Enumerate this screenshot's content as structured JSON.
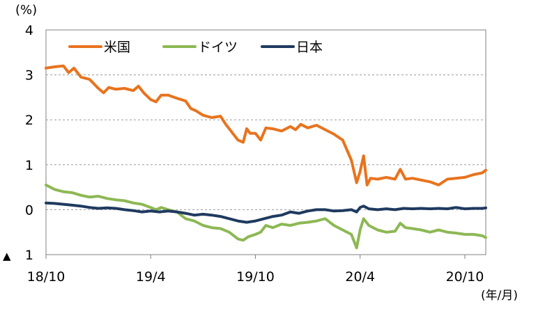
{
  "chart_data": {
    "type": "line",
    "ylabel": "(%)",
    "xlabel": "(年/月)",
    "ylim": [
      -1,
      4
    ],
    "yticks": [
      {
        "value": 4,
        "label": "4"
      },
      {
        "value": 3,
        "label": "3"
      },
      {
        "value": 2,
        "label": "2"
      },
      {
        "value": 1,
        "label": "1"
      },
      {
        "value": 0,
        "label": "0"
      },
      {
        "value": -1,
        "label": "1",
        "marker": "▲"
      }
    ],
    "xticks": [
      {
        "index": 0,
        "label": "18/10"
      },
      {
        "index": 6,
        "label": "19/4"
      },
      {
        "index": 12,
        "label": "19/10"
      },
      {
        "index": 18,
        "label": "20/4"
      },
      {
        "index": 24,
        "label": "20/10"
      }
    ],
    "xrange": [
      0,
      25.2
    ],
    "grid": true,
    "legend": "top-left",
    "series": [
      {
        "name": "米国",
        "color": "#e8731e",
        "points": [
          [
            0,
            3.15
          ],
          [
            0.5,
            3.18
          ],
          [
            1,
            3.2
          ],
          [
            1.3,
            3.05
          ],
          [
            1.6,
            3.15
          ],
          [
            2,
            2.95
          ],
          [
            2.5,
            2.9
          ],
          [
            3,
            2.7
          ],
          [
            3.3,
            2.6
          ],
          [
            3.6,
            2.72
          ],
          [
            4,
            2.68
          ],
          [
            4.5,
            2.7
          ],
          [
            5,
            2.65
          ],
          [
            5.3,
            2.75
          ],
          [
            5.6,
            2.6
          ],
          [
            6,
            2.45
          ],
          [
            6.3,
            2.4
          ],
          [
            6.6,
            2.55
          ],
          [
            7,
            2.55
          ],
          [
            7.5,
            2.48
          ],
          [
            8,
            2.42
          ],
          [
            8.3,
            2.25
          ],
          [
            8.6,
            2.2
          ],
          [
            9,
            2.1
          ],
          [
            9.5,
            2.05
          ],
          [
            10,
            2.08
          ],
          [
            10.3,
            1.9
          ],
          [
            10.6,
            1.75
          ],
          [
            11,
            1.55
          ],
          [
            11.3,
            1.5
          ],
          [
            11.5,
            1.8
          ],
          [
            11.7,
            1.7
          ],
          [
            12,
            1.7
          ],
          [
            12.3,
            1.55
          ],
          [
            12.6,
            1.82
          ],
          [
            13,
            1.8
          ],
          [
            13.5,
            1.75
          ],
          [
            14,
            1.85
          ],
          [
            14.3,
            1.78
          ],
          [
            14.6,
            1.9
          ],
          [
            15,
            1.82
          ],
          [
            15.5,
            1.88
          ],
          [
            16,
            1.78
          ],
          [
            16.5,
            1.68
          ],
          [
            17,
            1.55
          ],
          [
            17.5,
            1.1
          ],
          [
            17.8,
            0.6
          ],
          [
            18,
            0.85
          ],
          [
            18.2,
            1.2
          ],
          [
            18.4,
            0.55
          ],
          [
            18.6,
            0.7
          ],
          [
            19,
            0.68
          ],
          [
            19.5,
            0.72
          ],
          [
            20,
            0.68
          ],
          [
            20.3,
            0.9
          ],
          [
            20.6,
            0.68
          ],
          [
            21,
            0.7
          ],
          [
            21.5,
            0.66
          ],
          [
            22,
            0.62
          ],
          [
            22.5,
            0.55
          ],
          [
            23,
            0.68
          ],
          [
            23.5,
            0.7
          ],
          [
            24,
            0.72
          ],
          [
            24.5,
            0.78
          ],
          [
            25,
            0.82
          ],
          [
            25.2,
            0.88
          ]
        ]
      },
      {
        "name": "ドイツ",
        "color": "#8db854",
        "points": [
          [
            0,
            0.55
          ],
          [
            0.5,
            0.45
          ],
          [
            1,
            0.4
          ],
          [
            1.5,
            0.38
          ],
          [
            2,
            0.32
          ],
          [
            2.5,
            0.28
          ],
          [
            3,
            0.3
          ],
          [
            3.5,
            0.25
          ],
          [
            4,
            0.22
          ],
          [
            4.5,
            0.2
          ],
          [
            5,
            0.15
          ],
          [
            5.5,
            0.12
          ],
          [
            6,
            0.05
          ],
          [
            6.3,
            0.0
          ],
          [
            6.6,
            0.05
          ],
          [
            7,
            0.0
          ],
          [
            7.5,
            -0.05
          ],
          [
            8,
            -0.2
          ],
          [
            8.5,
            -0.25
          ],
          [
            9,
            -0.35
          ],
          [
            9.5,
            -0.4
          ],
          [
            10,
            -0.42
          ],
          [
            10.5,
            -0.5
          ],
          [
            11,
            -0.65
          ],
          [
            11.3,
            -0.68
          ],
          [
            11.6,
            -0.6
          ],
          [
            12,
            -0.55
          ],
          [
            12.3,
            -0.5
          ],
          [
            12.6,
            -0.35
          ],
          [
            13,
            -0.4
          ],
          [
            13.5,
            -0.32
          ],
          [
            14,
            -0.35
          ],
          [
            14.5,
            -0.3
          ],
          [
            15,
            -0.28
          ],
          [
            15.5,
            -0.25
          ],
          [
            16,
            -0.2
          ],
          [
            16.5,
            -0.35
          ],
          [
            17,
            -0.45
          ],
          [
            17.5,
            -0.55
          ],
          [
            17.8,
            -0.85
          ],
          [
            18,
            -0.45
          ],
          [
            18.2,
            -0.2
          ],
          [
            18.5,
            -0.35
          ],
          [
            19,
            -0.45
          ],
          [
            19.5,
            -0.5
          ],
          [
            20,
            -0.48
          ],
          [
            20.3,
            -0.3
          ],
          [
            20.6,
            -0.4
          ],
          [
            21,
            -0.42
          ],
          [
            21.5,
            -0.45
          ],
          [
            22,
            -0.5
          ],
          [
            22.5,
            -0.45
          ],
          [
            23,
            -0.5
          ],
          [
            23.5,
            -0.52
          ],
          [
            24,
            -0.55
          ],
          [
            24.5,
            -0.55
          ],
          [
            25,
            -0.58
          ],
          [
            25.2,
            -0.62
          ]
        ]
      },
      {
        "name": "日本",
        "color": "#1f3a5f",
        "points": [
          [
            0,
            0.15
          ],
          [
            0.5,
            0.14
          ],
          [
            1,
            0.12
          ],
          [
            1.5,
            0.1
          ],
          [
            2,
            0.08
          ],
          [
            2.5,
            0.05
          ],
          [
            3,
            0.03
          ],
          [
            3.5,
            0.04
          ],
          [
            4,
            0.03
          ],
          [
            4.5,
            0.0
          ],
          [
            5,
            -0.02
          ],
          [
            5.5,
            -0.05
          ],
          [
            6,
            -0.03
          ],
          [
            6.5,
            -0.05
          ],
          [
            7,
            -0.03
          ],
          [
            7.5,
            -0.05
          ],
          [
            8,
            -0.08
          ],
          [
            8.5,
            -0.12
          ],
          [
            9,
            -0.1
          ],
          [
            9.5,
            -0.12
          ],
          [
            10,
            -0.15
          ],
          [
            10.5,
            -0.2
          ],
          [
            11,
            -0.25
          ],
          [
            11.5,
            -0.28
          ],
          [
            12,
            -0.25
          ],
          [
            12.5,
            -0.2
          ],
          [
            13,
            -0.15
          ],
          [
            13.5,
            -0.12
          ],
          [
            14,
            -0.05
          ],
          [
            14.5,
            -0.08
          ],
          [
            15,
            -0.03
          ],
          [
            15.5,
            0.0
          ],
          [
            16,
            0.0
          ],
          [
            16.5,
            -0.03
          ],
          [
            17,
            -0.02
          ],
          [
            17.5,
            0.0
          ],
          [
            17.8,
            -0.05
          ],
          [
            18,
            0.05
          ],
          [
            18.2,
            0.08
          ],
          [
            18.5,
            0.02
          ],
          [
            19,
            0.0
          ],
          [
            19.5,
            0.02
          ],
          [
            20,
            0.0
          ],
          [
            20.5,
            0.03
          ],
          [
            21,
            0.02
          ],
          [
            21.5,
            0.03
          ],
          [
            22,
            0.02
          ],
          [
            22.5,
            0.03
          ],
          [
            23,
            0.02
          ],
          [
            23.5,
            0.05
          ],
          [
            24,
            0.02
          ],
          [
            24.5,
            0.03
          ],
          [
            25,
            0.03
          ],
          [
            25.2,
            0.04
          ]
        ]
      }
    ]
  }
}
